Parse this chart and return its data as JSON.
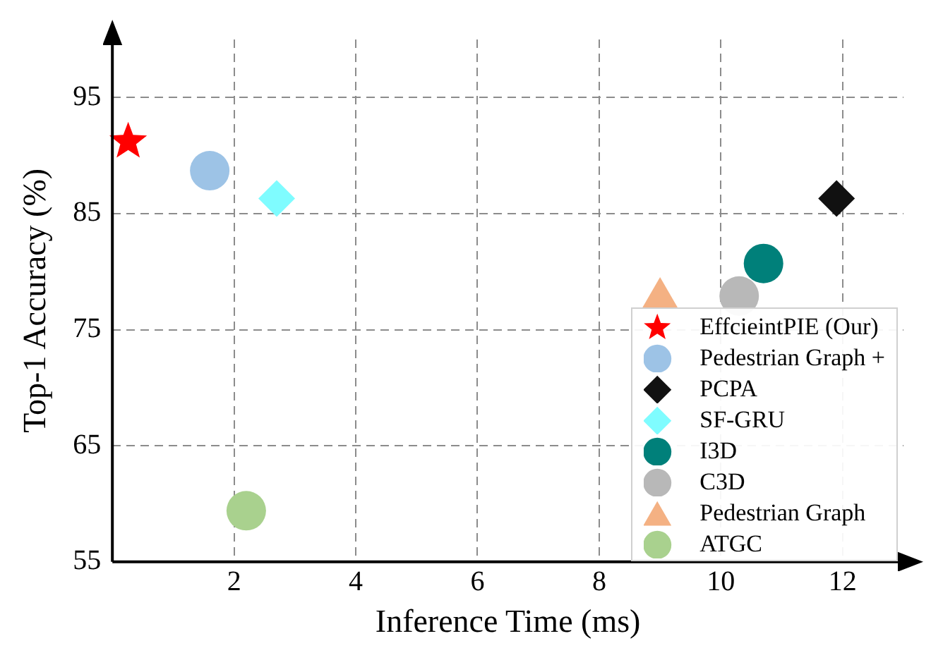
{
  "chart_data": {
    "type": "scatter",
    "xlabel": "Inference Time (ms)",
    "ylabel": "Top-1 Accuracy (%)",
    "xlim": [
      0,
      13
    ],
    "ylim": [
      55,
      100
    ],
    "xticks": [
      2,
      4,
      6,
      8,
      10,
      12
    ],
    "yticks": [
      55,
      65,
      75,
      85,
      95
    ],
    "grid": true,
    "legend": "bottom right",
    "series": [
      {
        "name": "EffcieintPIE (Our)",
        "color": "#ff0000",
        "marker": "star",
        "x": [
          0.26
        ],
        "values": [
          91.2
        ]
      },
      {
        "name": "Pedestrian Graph +",
        "color": "#9dc3e6",
        "marker": "circle",
        "x": [
          1.6
        ],
        "values": [
          88.7
        ]
      },
      {
        "name": "PCPA",
        "color": "#111111",
        "marker": "diamond",
        "x": [
          11.9
        ],
        "values": [
          86.3
        ]
      },
      {
        "name": "SF-GRU",
        "color": "#7ffcff",
        "marker": "diamond",
        "x": [
          2.7
        ],
        "values": [
          86.3
        ]
      },
      {
        "name": "I3D",
        "color": "#00807a",
        "marker": "circle",
        "x": [
          10.7
        ],
        "values": [
          80.7
        ]
      },
      {
        "name": "C3D",
        "color": "#b8b8b8",
        "marker": "circle",
        "x": [
          10.3
        ],
        "values": [
          77.9
        ]
      },
      {
        "name": "Pedestrian Graph",
        "color": "#f4b183",
        "marker": "triangle",
        "x": [
          9.0
        ],
        "values": [
          77.7
        ]
      },
      {
        "name": "ATGC",
        "color": "#a9d18e",
        "marker": "circle",
        "x": [
          2.2
        ],
        "values": [
          59.4
        ]
      }
    ]
  }
}
